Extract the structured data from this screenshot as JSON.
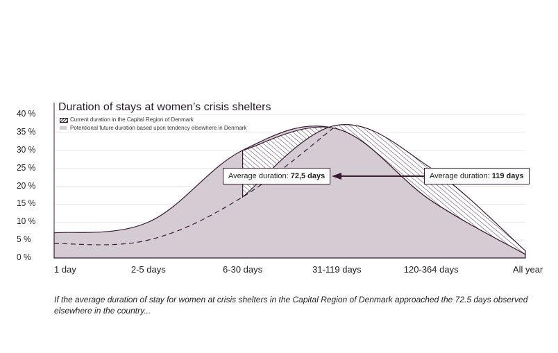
{
  "chart_data": {
    "type": "area",
    "title": "Duration of stays at women’s crisis shelters",
    "categories": [
      "1 day",
      "2-5 days",
      "6-30 days",
      "31-119 days",
      "120-364 days",
      "All year"
    ],
    "y_ticks": [
      "0 %",
      "5 %",
      "10 %",
      "15 %",
      "20 %",
      "25 %",
      "30 %",
      "35 %",
      "40 %"
    ],
    "ylim": [
      0,
      40
    ],
    "legend_placement": "top-left",
    "series": [
      {
        "name": "Current duration in the Capital Region of Denmark",
        "style": "hatched",
        "values": [
          4,
          5,
          17,
          37,
          25,
          2
        ]
      },
      {
        "name": "Potentional future duration based upon tendency elsewhere in Denmark",
        "style": "filled",
        "values": [
          7,
          10,
          30,
          36,
          16,
          1
        ]
      }
    ],
    "annotations": [
      {
        "prefix": "Average duration: ",
        "value": "72,5 days"
      },
      {
        "prefix": "Average duration: ",
        "value": "119 days"
      }
    ],
    "colors": {
      "fill": "#d5cbd3",
      "line": "#3a1a33",
      "grid": "#e4dde2"
    }
  },
  "caption": "If the average duration of stay for women at crisis shelters in the Capital Region of Denmark approached the 72.5 days observed elsewhere in the country..."
}
